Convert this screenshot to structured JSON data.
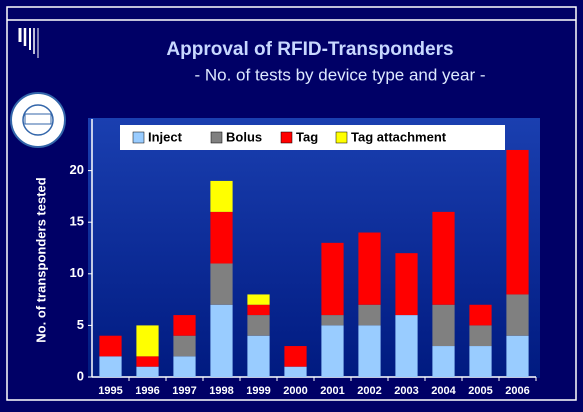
{
  "chart_data": {
    "type": "stacked_bar",
    "title": "Approval of RFID-Transponders",
    "subtitle": "- No. of tests by device type and year -",
    "y_label": "No. of transponders tested",
    "categories": [
      "1995",
      "1996",
      "1997",
      "1998",
      "1999",
      "2000",
      "2001",
      "2002",
      "2003",
      "2004",
      "2005",
      "2006"
    ],
    "series": [
      {
        "name": "Inject",
        "color": "#99ccff",
        "values": [
          2,
          1,
          2,
          7,
          4,
          1,
          5,
          5,
          6,
          3,
          3,
          4
        ]
      },
      {
        "name": "Bolus",
        "color": "#808080",
        "values": [
          0,
          0,
          2,
          4,
          2,
          0,
          1,
          2,
          0,
          4,
          2,
          4
        ]
      },
      {
        "name": "Tag",
        "color": "#ff0000",
        "values": [
          2,
          1,
          2,
          5,
          1,
          2,
          7,
          7,
          6,
          9,
          2,
          14
        ]
      },
      {
        "name": "Tag attachment",
        "color": "#ffff00",
        "values": [
          0,
          3,
          0,
          3,
          1,
          0,
          0,
          0,
          0,
          0,
          0,
          0
        ]
      }
    ],
    "ylim": [
      0,
      25
    ],
    "yticks": [
      0,
      5,
      10,
      15,
      20
    ],
    "grid": false,
    "legend": "top"
  }
}
